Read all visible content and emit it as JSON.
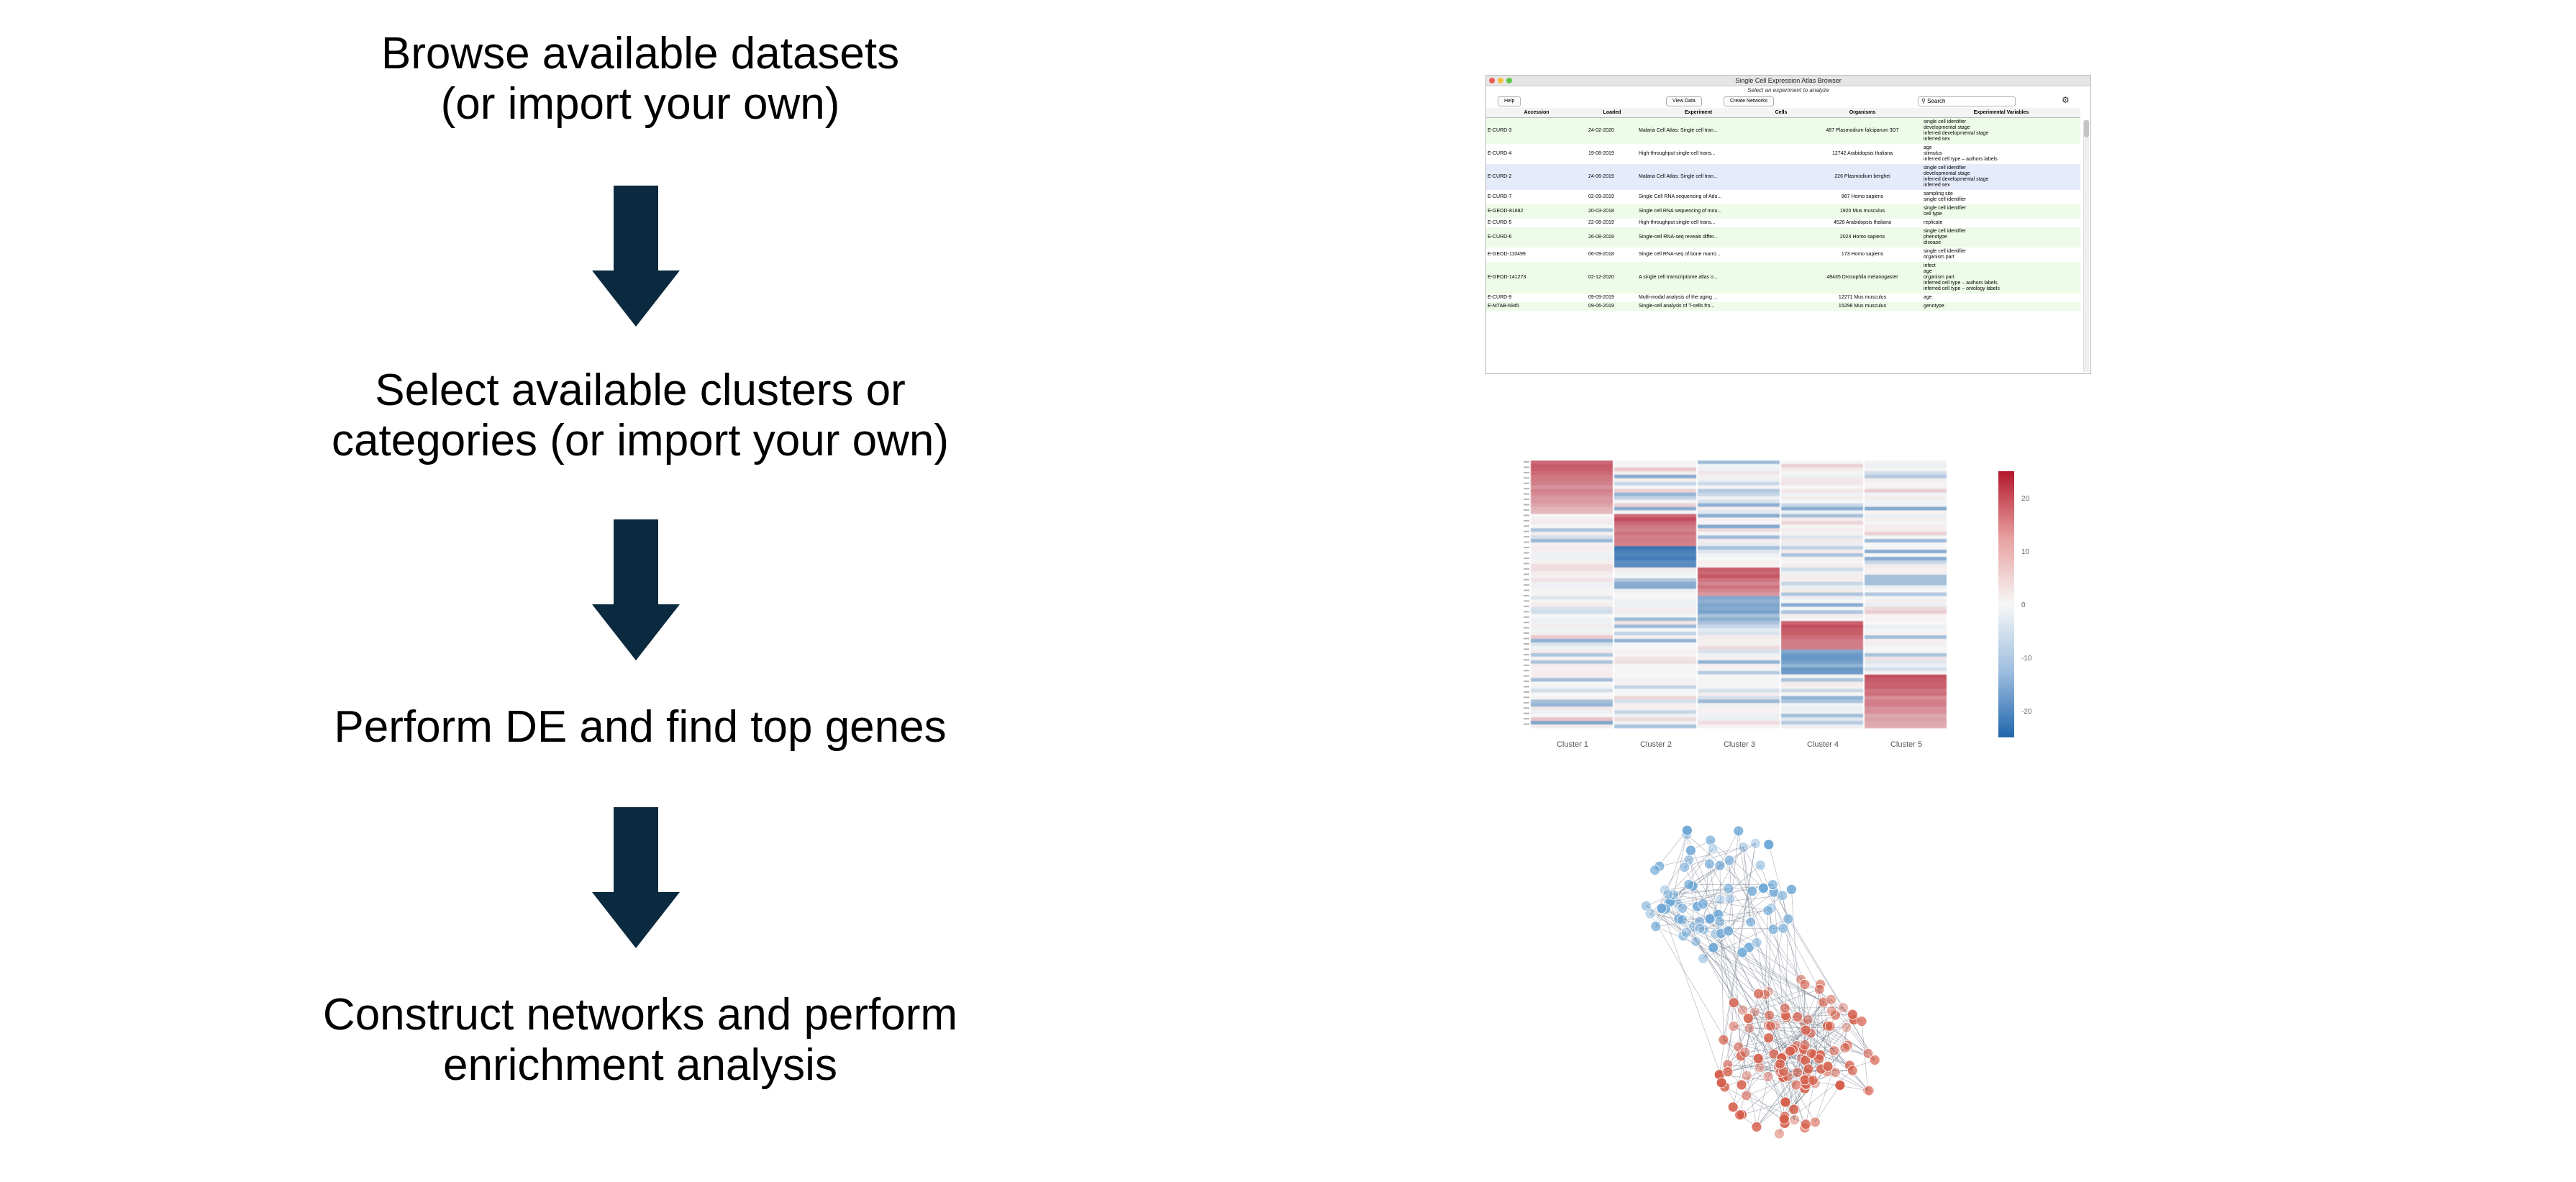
{
  "steps": [
    {
      "line1": "Browse available datasets",
      "line2": "(or import your own)"
    },
    {
      "line1": "Select available clusters or",
      "line2": "categories (or import your own)"
    },
    {
      "line1": "Perform DE and find top genes",
      "line2": ""
    },
    {
      "line1": "Construct networks and perform",
      "line2": "enrichment analysis"
    }
  ],
  "colors": {
    "arrow": "#0b2a3f",
    "row_green": "#eefbe9",
    "row_selected": "#e6ebfb",
    "heat_red": "#b2182b",
    "heat_blue": "#2166ac"
  },
  "browser": {
    "title": "Single Cell Expression Atlas Browser",
    "subtitle": "Select an experiment to analyze",
    "help_label": "Help",
    "view_data_label": "View Data",
    "create_networks_label": "Create Networks",
    "search_placeholder": "Search",
    "search_icon": "magnifier-icon",
    "settings_icon": "gear-icon",
    "columns": [
      "Accession",
      "Loaded",
      "Experiment",
      "Cells",
      "Organisms",
      "Experimental Variables"
    ],
    "rows": [
      {
        "accession": "E-CURD-3",
        "loaded": "24-02-2020",
        "experiment": "Malaria Cell Atlas: Single cell tran...",
        "cells": "",
        "organisms": "487 Plasmodium falciparum 3D7",
        "vars": [
          "single cell identifier",
          "developmental stage",
          "inferred developmental stage",
          "inferred sex"
        ],
        "highlight": "green"
      },
      {
        "accession": "E-CURD-4",
        "loaded": "19-08-2019",
        "experiment": "High-throughput single-cell trans...",
        "cells": "",
        "organisms": "12742 Arabidopsis thaliana",
        "vars": [
          "age",
          "stimulus",
          "inferred cell type – authors labels"
        ],
        "highlight": "none"
      },
      {
        "accession": "E-CURD-2",
        "loaded": "24-06-2019",
        "experiment": "Malaria Cell Atlas: Single cell tran...",
        "cells": "",
        "organisms": "226 Plasmodium berghei",
        "vars": [
          "single cell identifier",
          "developmental stage",
          "inferred developmental stage",
          "inferred sex"
        ],
        "highlight": "selected"
      },
      {
        "accession": "E-CURD-7",
        "loaded": "02-09-2019",
        "experiment": "Single Cell RNA sequencing of Adu...",
        "cells": "",
        "organisms": "867 Homo sapiens",
        "vars": [
          "sampling site",
          "single cell identifier"
        ],
        "highlight": "none"
      },
      {
        "accession": "E-GEOD-81682",
        "loaded": "20-03-2018",
        "experiment": "Single cell RNA sequencing of mou...",
        "cells": "",
        "organisms": "1920 Mus musculus",
        "vars": [
          "single cell identifier",
          "cell type"
        ],
        "highlight": "green"
      },
      {
        "accession": "E-CURD-5",
        "loaded": "22-08-2019",
        "experiment": "High-throughput single-cell trans...",
        "cells": "",
        "organisms": "4528 Arabidopsis thaliana",
        "vars": [
          "replicate"
        ],
        "highlight": "none"
      },
      {
        "accession": "E-CURD-6",
        "loaded": "26-08-2019",
        "experiment": "Single-cell RNA-seq reveals differ...",
        "cells": "",
        "organisms": "2024 Homo sapiens",
        "vars": [
          "single cell identifier",
          "phenotype",
          "disease"
        ],
        "highlight": "green"
      },
      {
        "accession": "E-GEOD-110499",
        "loaded": "06-09-2018",
        "experiment": "Single cell RNA-seq of bone marro...",
        "cells": "",
        "organisms": "173 Homo sapiens",
        "vars": [
          "single cell identifier",
          "organism part"
        ],
        "highlight": "none"
      },
      {
        "accession": "E-GEOD-141273",
        "loaded": "02-12-2020",
        "experiment": "A single cell transcriptome atlas o...",
        "cells": "",
        "organisms": "48435 Drosophila melanogaster",
        "vars": [
          "infect",
          "age",
          "organism part",
          "inferred cell type – authors labels",
          "inferred cell type – ontology labels"
        ],
        "highlight": "green"
      },
      {
        "accession": "E-CURD-9",
        "loaded": "09-09-2019",
        "experiment": "Multi-modal analysis of the aging ...",
        "cells": "",
        "organisms": "12271 Mus musculus",
        "vars": [
          "age"
        ],
        "highlight": "none"
      },
      {
        "accession": "E-MTAB-6945",
        "loaded": "09-06-2019",
        "experiment": "Single-cell analysis of T-cells fro...",
        "cells": "",
        "organisms": "15298 Mus musculus",
        "vars": [
          "genotype"
        ],
        "highlight": "green"
      }
    ]
  },
  "heatmap": {
    "clusters": [
      "Cluster 1",
      "Cluster 2",
      "Cluster 3",
      "Cluster 4",
      "Cluster 5"
    ],
    "colorbar_ticks": [
      20,
      10,
      0,
      -10,
      -20
    ],
    "value_range": [
      -25,
      25
    ]
  },
  "network": {
    "colors": {
      "up": "#d6604d",
      "down": "#6fa8d6",
      "edge": "#5a6478"
    }
  }
}
